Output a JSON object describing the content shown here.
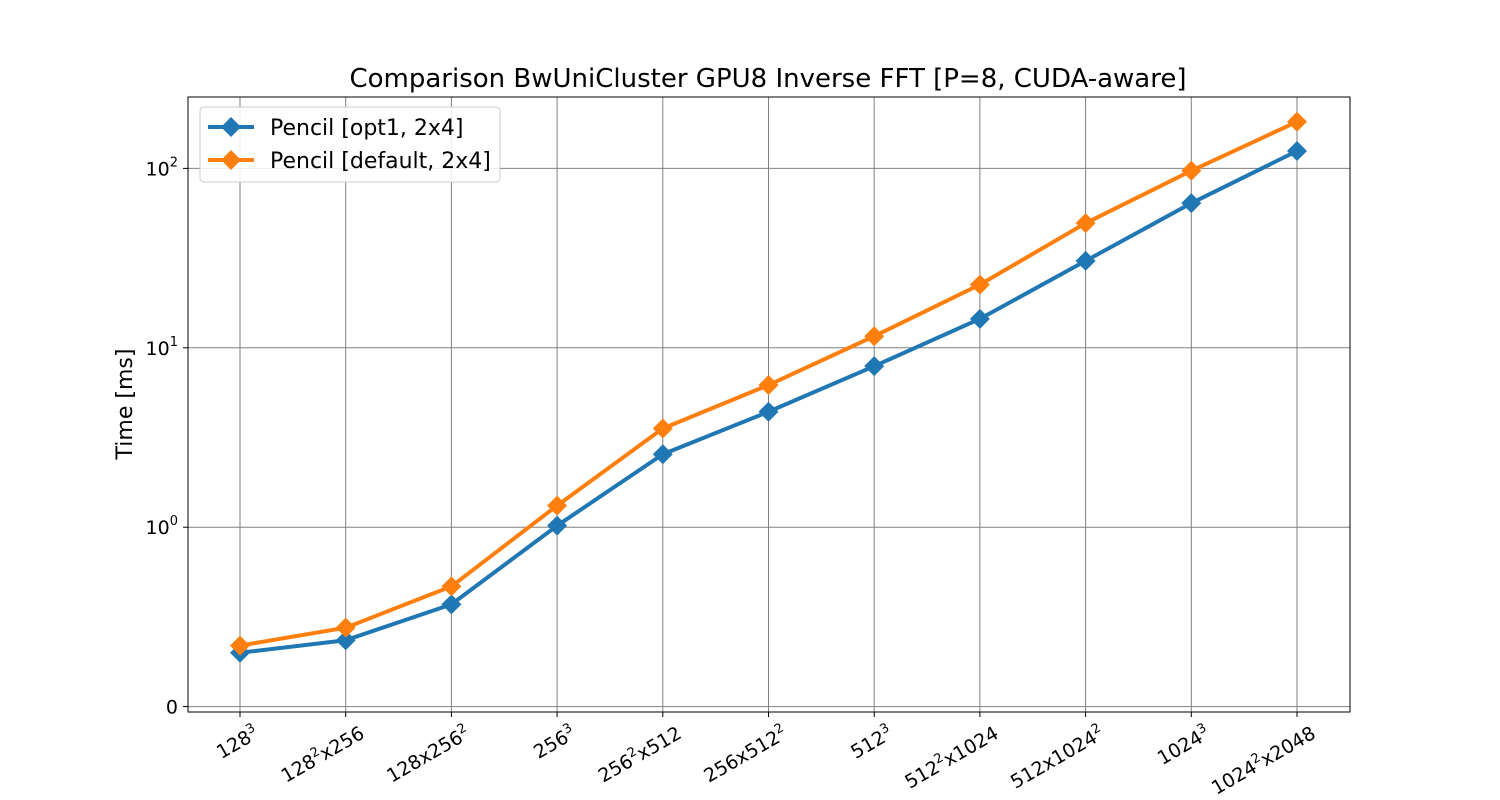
{
  "chart_data": {
    "type": "line",
    "title": "Comparison BwUniCluster GPU8 Inverse FFT [P=8, CUDA-aware]",
    "xlabel": "",
    "ylabel": "Time [ms]",
    "y_scale": "symlog",
    "y_ticks": [
      {
        "value": 0,
        "base": "0",
        "exp": ""
      },
      {
        "value": 1,
        "base": "10",
        "exp": "0"
      },
      {
        "value": 10,
        "base": "10",
        "exp": "1"
      },
      {
        "value": 100,
        "base": "10",
        "exp": "2"
      }
    ],
    "ylim": [
      -0.03,
      250
    ],
    "grid": true,
    "legend_position": "top-left",
    "categories": [
      [
        {
          "t": "128"
        },
        {
          "t": "3",
          "sup": true
        }
      ],
      [
        {
          "t": "128"
        },
        {
          "t": "2",
          "sup": true
        },
        {
          "t": "x256"
        }
      ],
      [
        {
          "t": "128x256"
        },
        {
          "t": "2",
          "sup": true
        }
      ],
      [
        {
          "t": "256"
        },
        {
          "t": "3",
          "sup": true
        }
      ],
      [
        {
          "t": "256"
        },
        {
          "t": "2",
          "sup": true
        },
        {
          "t": "x512"
        }
      ],
      [
        {
          "t": "256x512"
        },
        {
          "t": "2",
          "sup": true
        }
      ],
      [
        {
          "t": "512"
        },
        {
          "t": "3",
          "sup": true
        }
      ],
      [
        {
          "t": "512"
        },
        {
          "t": "2",
          "sup": true
        },
        {
          "t": "x1024"
        }
      ],
      [
        {
          "t": "512x1024"
        },
        {
          "t": "2",
          "sup": true
        }
      ],
      [
        {
          "t": "1024"
        },
        {
          "t": "3",
          "sup": true
        }
      ],
      [
        {
          "t": "1024"
        },
        {
          "t": "2",
          "sup": true
        },
        {
          "t": "x2048"
        }
      ]
    ],
    "series": [
      {
        "name": "Pencil [opt1, 2x4]",
        "color": "#1f77b4",
        "marker": "diamond",
        "values": [
          0.3,
          0.37,
          0.57,
          1.02,
          2.55,
          4.4,
          7.9,
          14.5,
          30.5,
          64,
          125
        ]
      },
      {
        "name": "Pencil [default, 2x4]",
        "color": "#ff7f0e",
        "marker": "diamond",
        "values": [
          0.34,
          0.44,
          0.67,
          1.32,
          3.55,
          6.2,
          11.6,
          22.5,
          49.5,
          97,
          182
        ]
      }
    ]
  }
}
